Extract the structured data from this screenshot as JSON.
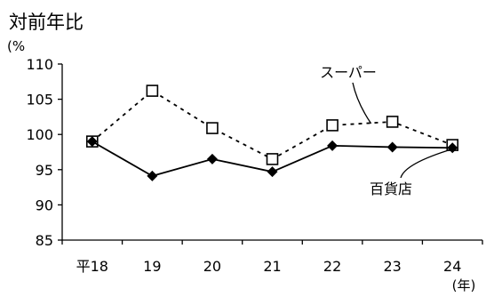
{
  "chart_data": {
    "type": "line",
    "title": "対前年比",
    "ylabel": "(%",
    "xlabel": "(年)",
    "categories": [
      "平18",
      "19",
      "20",
      "21",
      "22",
      "23",
      "24"
    ],
    "ylim": [
      85,
      110
    ],
    "yticks": [
      85,
      90,
      95,
      100,
      105,
      110
    ],
    "grid": false,
    "series": [
      {
        "name": "スーパー",
        "values": [
          99.0,
          106.2,
          100.9,
          96.5,
          101.3,
          101.8,
          98.5
        ],
        "line_style": "dashed",
        "marker": "open-square",
        "color": "#000000"
      },
      {
        "name": "百貨店",
        "values": [
          99.0,
          94.1,
          96.5,
          94.7,
          98.4,
          98.2,
          98.1
        ],
        "line_style": "solid",
        "marker": "filled-diamond",
        "color": "#000000"
      }
    ]
  }
}
